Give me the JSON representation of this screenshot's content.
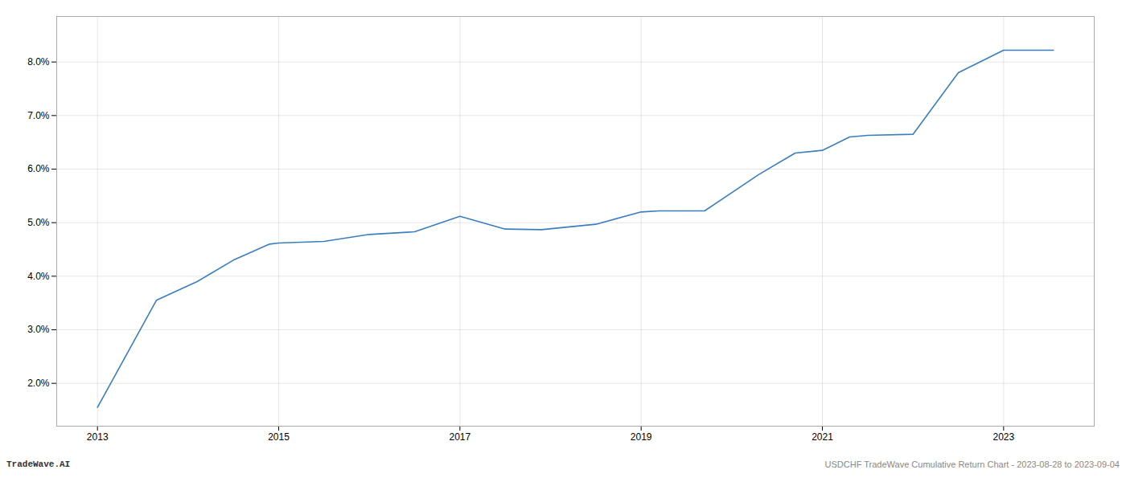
{
  "chart_data": {
    "type": "line",
    "x": [
      2013.0,
      2013.65,
      2014.1,
      2014.5,
      2014.9,
      2015.0,
      2015.5,
      2016.0,
      2016.5,
      2017.0,
      2017.5,
      2017.9,
      2018.5,
      2019.0,
      2019.2,
      2019.7,
      2020.3,
      2020.7,
      2021.0,
      2021.3,
      2021.5,
      2022.0,
      2022.5,
      2023.0,
      2023.55
    ],
    "values": [
      1.55,
      3.55,
      3.9,
      4.3,
      4.6,
      4.62,
      4.65,
      4.78,
      4.83,
      5.12,
      4.88,
      4.87,
      4.97,
      5.2,
      5.22,
      5.22,
      5.9,
      6.3,
      6.35,
      6.6,
      6.63,
      6.65,
      7.8,
      8.22,
      8.22
    ],
    "color": "#3a7ebf",
    "xlim": [
      2012.55,
      2024.0
    ],
    "ylim": [
      1.2,
      8.85
    ],
    "xticks": [
      2013,
      2015,
      2017,
      2019,
      2021,
      2023
    ],
    "yticks": [
      {
        "value": 2.0,
        "label": "2.0%"
      },
      {
        "value": 3.0,
        "label": "3.0%"
      },
      {
        "value": 4.0,
        "label": "4.0%"
      },
      {
        "value": 5.0,
        "label": "5.0%"
      },
      {
        "value": 6.0,
        "label": "6.0%"
      },
      {
        "value": 7.0,
        "label": "7.0%"
      },
      {
        "value": 8.0,
        "label": "8.0%"
      }
    ],
    "grid": true,
    "annotations": [
      "TradeWave.AI",
      "USDCHF TradeWave Cumulative Return Chart - 2023-08-28 to 2023-09-04"
    ]
  }
}
